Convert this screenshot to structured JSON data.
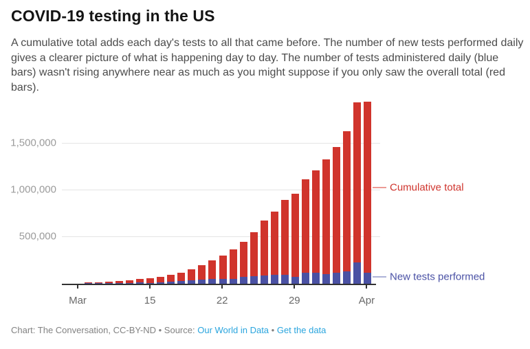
{
  "header": {
    "title": "COVID-19 testing in the US",
    "description": "A cumulative total adds each day's tests to all that came before. The number of new tests performed daily gives a clearer picture of what is happening day to day. The number of tests administered daily (blue bars) wasn't rising anywhere near as much as you might suppose if you only saw the overall total (red bars)."
  },
  "chart_data": {
    "type": "bar",
    "title": "COVID-19 testing in the US",
    "x": [
      "Mar 9",
      "Mar 10",
      "Mar 11",
      "Mar 12",
      "Mar 13",
      "Mar 14",
      "Mar 15",
      "Mar 16",
      "Mar 17",
      "Mar 18",
      "Mar 19",
      "Mar 20",
      "Mar 21",
      "Mar 22",
      "Mar 23",
      "Mar 24",
      "Mar 25",
      "Mar 26",
      "Mar 27",
      "Mar 28",
      "Mar 29",
      "Mar 30",
      "Mar 31",
      "Apr 1",
      "Apr 2",
      "Apr 3",
      "Apr 4",
      "Apr 5"
    ],
    "series": [
      {
        "name": "Cumulative total",
        "color": "#d0342c",
        "values": [
          13000,
          16000,
          21000,
          28000,
          38000,
          50000,
          57000,
          75000,
          94000,
          119000,
          153000,
          196000,
          251000,
          299000,
          368000,
          446000,
          551000,
          673000,
          771000,
          893000,
          959000,
          1113000,
          1211000,
          1325000,
          1463000,
          1630000,
          1935000,
          1945000
        ]
      },
      {
        "name": "New tests performed",
        "color": "#4a51a3",
        "values": [
          4000,
          5000,
          6000,
          7000,
          9000,
          12000,
          11000,
          18000,
          19000,
          26000,
          34000,
          43000,
          55000,
          48000,
          55000,
          70000,
          79000,
          85000,
          94000,
          94000,
          75000,
          119000,
          114000,
          101000,
          119000,
          130000,
          229000,
          119000
        ]
      }
    ],
    "x_tick_labels": [
      "Mar",
      "15",
      "22",
      "29",
      "Apr"
    ],
    "y_ticks": [
      500000,
      1000000,
      1500000
    ],
    "y_tick_labels": [
      "500,000",
      "1,000,000",
      "1,500,000"
    ],
    "ylim": [
      0,
      1950000
    ],
    "grid": true,
    "legend_position": "right-annotations",
    "annotations": {
      "cumulative_label": "Cumulative total",
      "new_tests_label": "New tests performed"
    }
  },
  "footer": {
    "credit": "Chart: The Conversation, CC-BY-ND",
    "separator1": "•",
    "source_prefix": "Source:",
    "source_link": "Our World in Data",
    "separator2": "•",
    "data_link": "Get the data"
  }
}
